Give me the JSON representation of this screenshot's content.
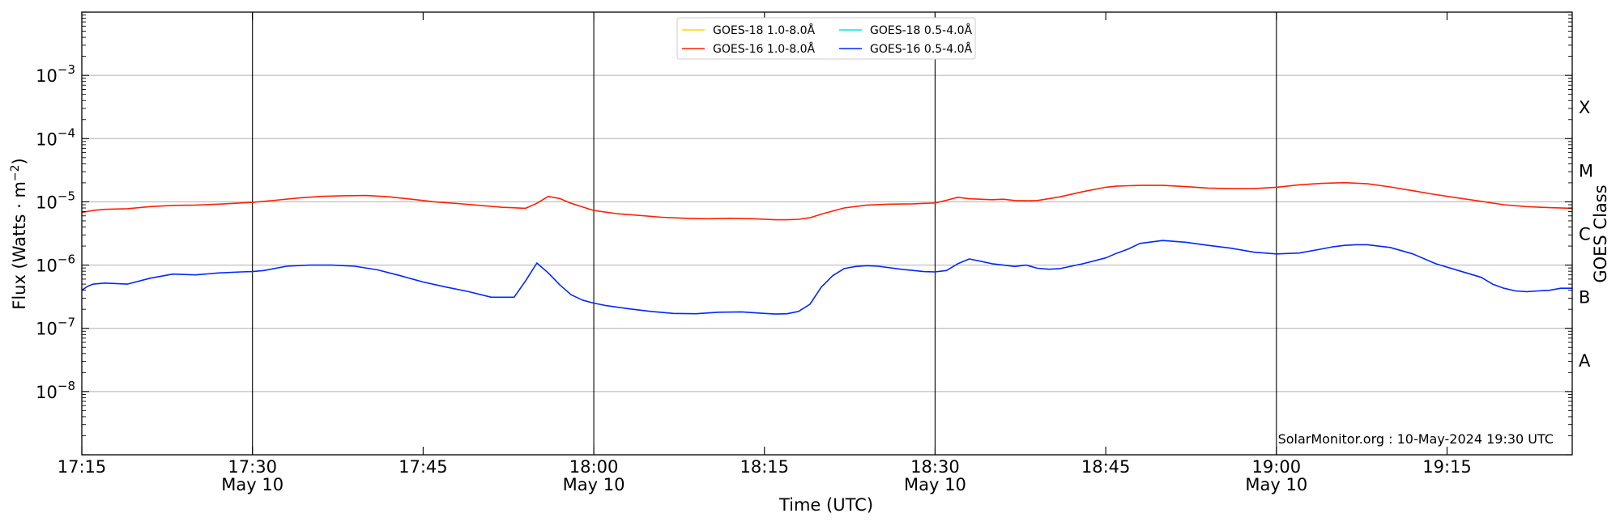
{
  "chart_data": {
    "type": "line",
    "ylabel_main": "Flux (Watts · m",
    "ylabel_sup": "−2",
    "ylabel_close": ")",
    "xlabel": "Time (UTC)",
    "right_ylabel": "GOES Class",
    "credit": "SolarMonitor.org : 10-May-2024 19:30 UTC",
    "y_scale": "log",
    "ylim_exp": [
      -9,
      -2
    ],
    "xlim_min": [
      0,
      131
    ],
    "grid": "horizontal at decades",
    "legend_position": "top-center",
    "y_ticks": [
      {
        "exp": -8,
        "base": "10",
        "sup": "−8"
      },
      {
        "exp": -7,
        "base": "10",
        "sup": "−7"
      },
      {
        "exp": -6,
        "base": "10",
        "sup": "−6"
      },
      {
        "exp": -5,
        "base": "10",
        "sup": "−5"
      },
      {
        "exp": -4,
        "base": "10",
        "sup": "−4"
      },
      {
        "exp": -3,
        "base": "10",
        "sup": "−3"
      }
    ],
    "x_ticks": [
      {
        "min": 0,
        "label": "17:15",
        "sub": ""
      },
      {
        "min": 15,
        "label": "17:30",
        "sub": "May 10"
      },
      {
        "min": 30,
        "label": "17:45",
        "sub": ""
      },
      {
        "min": 45,
        "label": "18:00",
        "sub": "May 10"
      },
      {
        "min": 60,
        "label": "18:15",
        "sub": ""
      },
      {
        "min": 75,
        "label": "18:30",
        "sub": "May 10"
      },
      {
        "min": 90,
        "label": "18:45",
        "sub": ""
      },
      {
        "min": 105,
        "label": "19:00",
        "sub": "May 10"
      },
      {
        "min": 120,
        "label": "19:15",
        "sub": ""
      }
    ],
    "vertical_lines_min": [
      15,
      45,
      75,
      105
    ],
    "goes_classes": [
      {
        "label": "A",
        "exp": -7.5
      },
      {
        "label": "B",
        "exp": -6.5
      },
      {
        "label": "C",
        "exp": -5.5
      },
      {
        "label": "M",
        "exp": -4.5
      },
      {
        "label": "X",
        "exp": -3.5
      }
    ],
    "legend": [
      {
        "name": "GOES-18 1.0-8.0Å",
        "color": "#ffd700"
      },
      {
        "name": "GOES-18 0.5-4.0Å",
        "color": "#00e5ee"
      },
      {
        "name": "GOES-16 1.0-8.0Å",
        "color": "#ff2000"
      },
      {
        "name": "GOES-16 0.5-4.0Å",
        "color": "#0028ff"
      }
    ],
    "series": [
      {
        "name": "GOES-16 1.0-8.0Å",
        "color": "#ff2000",
        "x": [
          0,
          1,
          2,
          4,
          6,
          8,
          10,
          12,
          15,
          17,
          19,
          21,
          23,
          25,
          27,
          29,
          31,
          33,
          35,
          37,
          39,
          40,
          41,
          42,
          43,
          45,
          47,
          49,
          51,
          53,
          55,
          57,
          59,
          61,
          62,
          63,
          64,
          65,
          67,
          69,
          71,
          73,
          75,
          76,
          77,
          78,
          80,
          81,
          82,
          83,
          84,
          86,
          88,
          90,
          91,
          93,
          95,
          97,
          99,
          101,
          103,
          105,
          107,
          109,
          111,
          113,
          115,
          117,
          119,
          121,
          123,
          125,
          127,
          129,
          131
        ],
        "y": [
          6.8e-06,
          7.3e-06,
          7.6e-06,
          7.8e-06,
          8.4e-06,
          8.8e-06,
          8.9e-06,
          9.2e-06,
          9.8e-06,
          1.06e-05,
          1.15e-05,
          1.22e-05,
          1.25e-05,
          1.26e-05,
          1.2e-05,
          1.1e-05,
          1e-05,
          9.4e-06,
          8.8e-06,
          8.2e-06,
          7.9e-06,
          9.5e-06,
          1.22e-05,
          1.13e-05,
          9.5e-06,
          7.3e-06,
          6.5e-06,
          6.1e-06,
          5.7e-06,
          5.5e-06,
          5.4e-06,
          5.5e-06,
          5.4e-06,
          5.2e-06,
          5.2e-06,
          5.3e-06,
          5.6e-06,
          6.4e-06,
          8e-06,
          8.9e-06,
          9.2e-06,
          9.3e-06,
          9.6e-06,
          1.06e-05,
          1.18e-05,
          1.12e-05,
          1.08e-05,
          1.1e-05,
          1.05e-05,
          1.04e-05,
          1.05e-05,
          1.2e-05,
          1.45e-05,
          1.7e-05,
          1.78e-05,
          1.82e-05,
          1.82e-05,
          1.74e-05,
          1.65e-05,
          1.62e-05,
          1.62e-05,
          1.7e-05,
          1.86e-05,
          1.96e-05,
          2.01e-05,
          1.93e-05,
          1.72e-05,
          1.5e-05,
          1.3e-05,
          1.15e-05,
          1.02e-05,
          9e-06,
          8.4e-06,
          8.1e-06,
          7.9e-06
        ]
      },
      {
        "name": "GOES-16 0.5-4.0Å",
        "color": "#0028ff",
        "x": [
          0,
          0.5,
          1,
          2,
          4,
          6,
          8,
          10,
          12,
          14,
          15,
          16,
          18,
          20,
          22,
          24,
          26,
          28,
          30,
          32,
          34,
          36,
          38,
          39,
          40,
          41,
          42,
          43,
          44,
          45,
          46,
          48,
          50,
          52,
          54,
          56,
          58,
          60,
          61,
          62,
          63,
          64,
          65,
          66,
          67,
          68,
          69,
          70,
          72,
          74,
          75,
          76,
          77,
          78,
          79,
          80,
          81,
          82,
          83,
          84,
          85,
          86,
          88,
          90,
          91,
          92,
          93,
          95,
          97,
          99,
          101,
          103,
          105,
          107,
          109,
          110,
          111,
          112,
          113,
          115,
          117,
          119,
          121,
          123,
          124,
          125,
          126,
          127,
          128,
          129,
          130,
          131
        ],
        "y": [
          4e-07,
          4.6e-07,
          5e-07,
          5.2e-07,
          5e-07,
          6.2e-07,
          7.2e-07,
          7e-07,
          7.5e-07,
          7.8e-07,
          7.9e-07,
          8.2e-07,
          9.6e-07,
          1e-06,
          1e-06,
          9.6e-07,
          8.4e-07,
          6.8e-07,
          5.4e-07,
          4.5e-07,
          3.8e-07,
          3.1e-07,
          3.1e-07,
          5.6e-07,
          1.08e-06,
          7.5e-07,
          4.9e-07,
          3.4e-07,
          2.8e-07,
          2.5e-07,
          2.3e-07,
          2.05e-07,
          1.85e-07,
          1.72e-07,
          1.7e-07,
          1.8e-07,
          1.82e-07,
          1.72e-07,
          1.68e-07,
          1.7e-07,
          1.85e-07,
          2.4e-07,
          4.5e-07,
          6.8e-07,
          8.8e-07,
          9.5e-07,
          9.8e-07,
          9.6e-07,
          8.6e-07,
          7.9e-07,
          7.8e-07,
          8.2e-07,
          1.05e-06,
          1.25e-06,
          1.15e-06,
          1.05e-06,
          1e-06,
          9.5e-07,
          1e-06,
          8.9e-07,
          8.6e-07,
          8.8e-07,
          1.05e-06,
          1.3e-06,
          1.55e-06,
          1.8e-06,
          2.2e-06,
          2.45e-06,
          2.3e-06,
          2.05e-06,
          1.85e-06,
          1.6e-06,
          1.5e-06,
          1.55e-06,
          1.8e-06,
          1.95e-06,
          2.05e-06,
          2.1e-06,
          2.1e-06,
          1.9e-06,
          1.5e-06,
          1.05e-06,
          8.2e-07,
          6.4e-07,
          5e-07,
          4.3e-07,
          3.9e-07,
          3.8e-07,
          3.9e-07,
          4e-07,
          4.3e-07,
          4.3e-07
        ]
      }
    ]
  }
}
